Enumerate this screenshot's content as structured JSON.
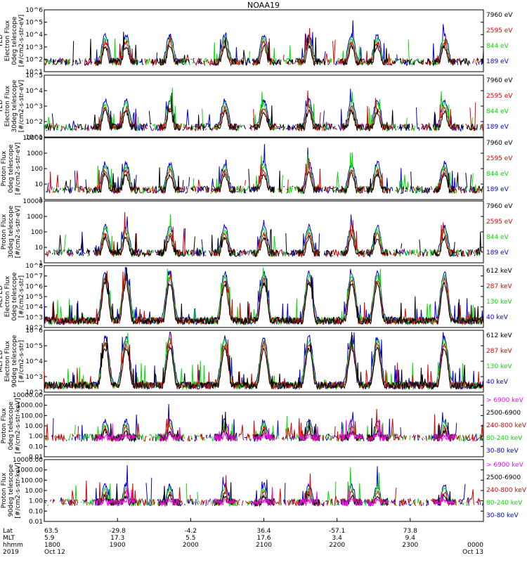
{
  "title": "NOAA19",
  "colors": {
    "black": "#000000",
    "red": "#e00000",
    "green": "#00e000",
    "blue": "#0000e0",
    "magenta": "#ff00ff"
  },
  "chart_data": [
    {
      "type": "line",
      "scale": "log",
      "ylabel": [
        "TED",
        "Electron Flux",
        "0deg telescope",
        "[#/cm2-s-str-eV]"
      ],
      "ylim": [
        1,
        1000000
      ],
      "ticks": [
        "10^1",
        "10^2",
        "10^3",
        "10^4",
        "10^5",
        "10^6"
      ],
      "legend": [
        {
          "label": "7960 eV",
          "color": "#000000"
        },
        {
          "label": "2595 eV",
          "color": "#e00000"
        },
        {
          "label": "844 eV",
          "color": "#00e000"
        },
        {
          "label": "189 eV",
          "color": "#0000e0"
        }
      ]
    },
    {
      "type": "line",
      "scale": "log",
      "ylabel": [
        "TED",
        "Electron Flux",
        "30deg telescope",
        "[#/cm2-s-str-eV]"
      ],
      "ylim": [
        1,
        100000
      ],
      "ticks": [
        "10^1",
        "10^2",
        "10^3",
        "10^4",
        "10^5"
      ],
      "legend": [
        {
          "label": "7960 eV",
          "color": "#000000"
        },
        {
          "label": "2595 eV",
          "color": "#e00000"
        },
        {
          "label": "844 eV",
          "color": "#00e000"
        },
        {
          "label": "189 eV",
          "color": "#0000e0"
        }
      ]
    },
    {
      "type": "line",
      "scale": "log",
      "ylabel": [
        "Proton Flux",
        "0deg telescope",
        "[#/cm2-s-str-eV]"
      ],
      "ylim": [
        1,
        10000
      ],
      "ticks": [
        "1",
        "10",
        "100",
        "1000",
        "10000"
      ],
      "legend": [
        {
          "label": "7960 eV",
          "color": "#000000"
        },
        {
          "label": "2595 eV",
          "color": "#e00000"
        },
        {
          "label": "844 eV",
          "color": "#00e000"
        },
        {
          "label": "189 eV",
          "color": "#0000e0"
        }
      ]
    },
    {
      "type": "line",
      "scale": "log",
      "ylabel": [
        "Proton Flux",
        "30deg telescope",
        "[#/cm2-s-str-eV]"
      ],
      "ylim": [
        1,
        10000
      ],
      "ticks": [
        "1",
        "10",
        "100",
        "1000",
        "10000"
      ],
      "legend": [
        {
          "label": "7960 eV",
          "color": "#000000"
        },
        {
          "label": "2595 eV",
          "color": "#e00000"
        },
        {
          "label": "844 eV",
          "color": "#00e000"
        },
        {
          "label": "189 eV",
          "color": "#0000e0"
        }
      ]
    },
    {
      "type": "line",
      "scale": "log",
      "ylabel": [
        "MEPED",
        "Electron Flux",
        "0deg telescope",
        "[#/cm2-s-str]"
      ],
      "ylim": [
        100,
        1000000000
      ],
      "ticks": [
        "10^2",
        "10^3",
        "10^4",
        "10^5",
        "10^6",
        "10^7",
        "10^8"
      ],
      "legend": [
        {
          "label": "612 keV",
          "color": "#000000"
        },
        {
          "label": "287 keV",
          "color": "#e00000"
        },
        {
          "label": "130 keV",
          "color": "#00e000"
        },
        {
          "label": "40 keV",
          "color": "#0000e0"
        }
      ]
    },
    {
      "type": "line",
      "scale": "log",
      "ylabel": [
        "MEPED",
        "Electron Flux",
        "90deg telescope",
        "[#/cm2-s-str]"
      ],
      "ylim": [
        100,
        10000000
      ],
      "ticks": [
        "10^2",
        "10^3",
        "10^4",
        "10^5",
        "10^6"
      ],
      "legend": [
        {
          "label": "612 keV",
          "color": "#000000"
        },
        {
          "label": "287 keV",
          "color": "#e00000"
        },
        {
          "label": "130 keV",
          "color": "#00e000"
        },
        {
          "label": "40 keV",
          "color": "#0000e0"
        }
      ]
    },
    {
      "type": "line",
      "scale": "log",
      "ylabel": [
        "Proton Flux",
        "0deg telescope",
        "[#/cm2-s-str-keV]"
      ],
      "ylim": [
        0.01,
        10000
      ],
      "ticks": [
        "0.01",
        "0.10",
        "1.00",
        "10.00",
        "100.00",
        "1000.00",
        "10000.00"
      ],
      "legend": [
        {
          "label": "> 6900 keV",
          "color": "#ff00ff"
        },
        {
          "label": "2500-6900",
          "color": "#000000"
        },
        {
          "label": "240-800 keV",
          "color": "#e00000"
        },
        {
          "label": "80-240 keV",
          "color": "#00e000"
        },
        {
          "label": "30-80 keV",
          "color": "#0000e0"
        }
      ]
    },
    {
      "type": "line",
      "scale": "log",
      "ylabel": [
        "Proton Flux",
        "90deg telescope",
        "[#/cm2-s-str-keV]"
      ],
      "ylim": [
        0.01,
        10000
      ],
      "ticks": [
        "0.01",
        "0.10",
        "1.00",
        "10.00",
        "100.00",
        "1000.00",
        "10000.00"
      ],
      "legend": [
        {
          "label": "> 6900 keV",
          "color": "#ff00ff"
        },
        {
          "label": "2500-6900",
          "color": "#000000"
        },
        {
          "label": "240-800 keV",
          "color": "#e00000"
        },
        {
          "label": "80-240 keV",
          "color": "#00e000"
        },
        {
          "label": "30-80 keV",
          "color": "#0000e0"
        }
      ]
    }
  ],
  "x_axis": {
    "range_minutes": [
      1080,
      1440
    ],
    "row_labels": [
      "Lat",
      "MLT",
      "hhmm",
      "2019"
    ],
    "ticks": [
      {
        "minute": 1080,
        "lat": "63.5",
        "mlt": "5.9",
        "hhmm": "1800",
        "date": "Oct 12"
      },
      {
        "minute": 1140,
        "lat": "-29.8",
        "mlt": "17.3",
        "hhmm": "1900",
        "date": ""
      },
      {
        "minute": 1200,
        "lat": "-4.2",
        "mlt": "5.5",
        "hhmm": "2000",
        "date": ""
      },
      {
        "minute": 1260,
        "lat": "36.4",
        "mlt": "17.6",
        "hhmm": "2100",
        "date": ""
      },
      {
        "minute": 1320,
        "lat": "-57.1",
        "mlt": "3.4",
        "hhmm": "2200",
        "date": ""
      },
      {
        "minute": 1380,
        "lat": "73.8",
        "mlt": "9.4",
        "hhmm": "2300",
        "date": ""
      },
      {
        "minute": 1440,
        "lat": "",
        "mlt": "",
        "hhmm": "0000",
        "date": "Oct 13"
      }
    ]
  }
}
